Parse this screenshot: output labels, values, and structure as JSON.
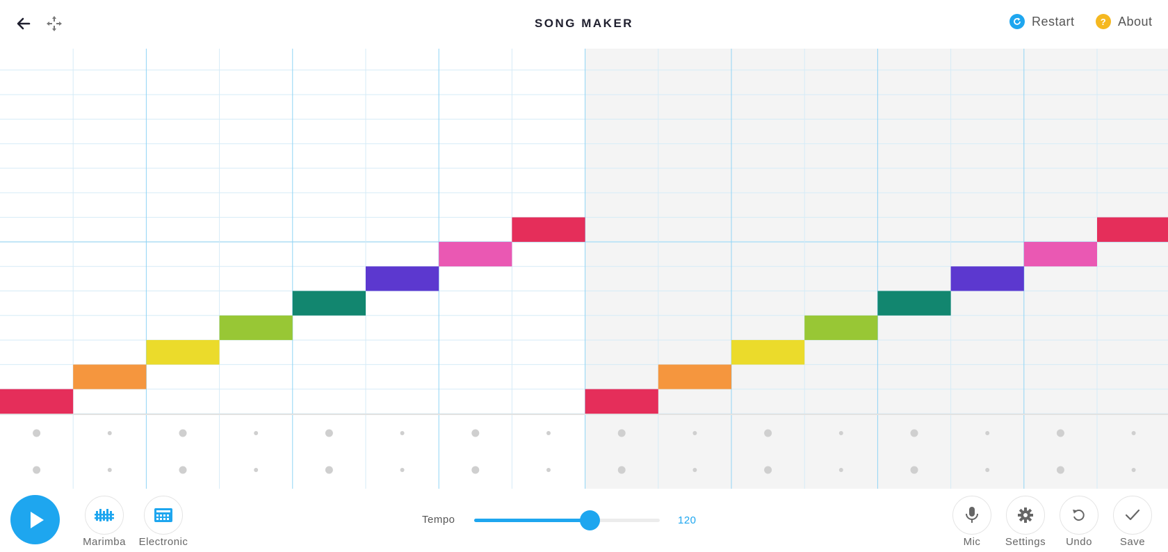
{
  "header": {
    "title": "SONG MAKER",
    "restart_label": "Restart",
    "about_label": "About",
    "back_icon": "arrow-left-icon",
    "move_icon": "move-arrows-icon"
  },
  "melody": {
    "bars": 2,
    "beats_per_bar": 4,
    "subdivisions_per_beat": 2,
    "rows": 14,
    "notes": [
      {
        "step": 0,
        "row": 0
      },
      {
        "step": 1,
        "row": 1
      },
      {
        "step": 2,
        "row": 2
      },
      {
        "step": 3,
        "row": 3
      },
      {
        "step": 4,
        "row": 4
      },
      {
        "step": 5,
        "row": 5
      },
      {
        "step": 6,
        "row": 6
      },
      {
        "step": 7,
        "row": 7
      },
      {
        "step": 8,
        "row": 0
      },
      {
        "step": 9,
        "row": 1
      },
      {
        "step": 10,
        "row": 2
      },
      {
        "step": 11,
        "row": 3
      },
      {
        "step": 12,
        "row": 4
      },
      {
        "step": 13,
        "row": 5
      },
      {
        "step": 14,
        "row": 6
      },
      {
        "step": 15,
        "row": 7
      }
    ],
    "row_colors": [
      "#e52e5a",
      "#f5963e",
      "#ebdb2b",
      "#98c735",
      "#12866f",
      "#5c38cf",
      "#ea58b3",
      "#e52e5a"
    ]
  },
  "rhythm": {
    "steps": 16,
    "rows": 2
  },
  "controls": {
    "play_icon": "play-icon",
    "instrument_label": "Marimba",
    "percussion_label": "Electronic",
    "tempo_label": "Tempo",
    "tempo_value": "120",
    "tempo_fraction": 0.62,
    "mic_label": "Mic",
    "settings_label": "Settings",
    "undo_label": "Undo",
    "save_label": "Save"
  },
  "colors": {
    "accent": "#1ea6ef",
    "about_icon": "#f5b820",
    "grid_line": "#d5ebf7",
    "beat_line": "#8fd4f5",
    "shade": "#f4f4f4"
  }
}
